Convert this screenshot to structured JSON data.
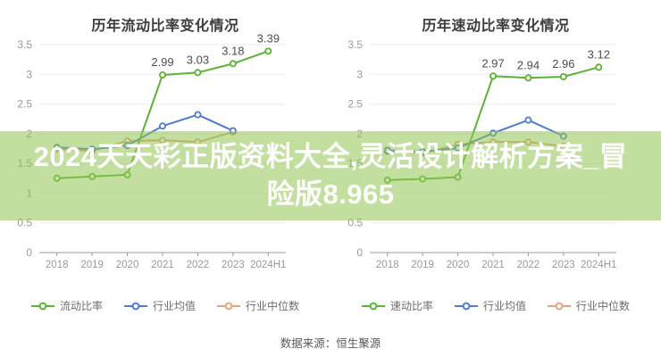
{
  "banner": {
    "line1": "2024天天彩正版资料大全,灵活设计解析方案_冒",
    "line2": "险版8.965",
    "bg_color": "#92c452",
    "text_color": "#ffffff"
  },
  "footer": {
    "source": "数据来源：恒生聚源"
  },
  "colors": {
    "main_series": "#5bb335",
    "industry_avg": "#4d7bd0",
    "industry_median": "#e4a47c",
    "grid": "#ebebeb",
    "axis": "#999999",
    "tick_label": "#999999",
    "data_label": "#4d4d4d",
    "title": "#3d3d3d"
  },
  "chart_data": [
    {
      "type": "line",
      "title": "历年流动比率变化情况",
      "xlabel": "",
      "ylabel": "",
      "categories": [
        "2018",
        "2019",
        "2020",
        "2021",
        "2022",
        "2023",
        "2024H1"
      ],
      "ylim": [
        0,
        3.5
      ],
      "yticks": [
        "0",
        "0.5",
        "1",
        "1.5",
        "2",
        "2.5",
        "3",
        "3.5"
      ],
      "grid": true,
      "legend_position": "bottom",
      "series": [
        {
          "name": "流动比率",
          "color": "#5bb335",
          "values": [
            1.25,
            1.28,
            1.31,
            2.99,
            3.03,
            3.18,
            3.39
          ],
          "labels": [
            null,
            null,
            null,
            "2.99",
            "3.03",
            "3.18",
            "3.39"
          ]
        },
        {
          "name": "行业均值",
          "color": "#4d7bd0",
          "values": [
            1.77,
            1.74,
            1.8,
            2.13,
            2.32,
            2.05
          ]
        },
        {
          "name": "行业中位数",
          "color": "#e4a47c",
          "values": [
            1.74,
            1.71,
            1.88,
            1.89,
            1.86,
            2.03
          ]
        }
      ]
    },
    {
      "type": "line",
      "title": "历年速动比率变化情况",
      "xlabel": "",
      "ylabel": "",
      "categories": [
        "2018",
        "2019",
        "2020",
        "2021",
        "2022",
        "2023",
        "2024H1"
      ],
      "ylim": [
        0,
        3.5
      ],
      "yticks": [
        "0",
        "0.5",
        "1",
        "1.5",
        "2",
        "2.5",
        "3",
        "3.5"
      ],
      "grid": true,
      "legend_position": "bottom",
      "series": [
        {
          "name": "速动比率",
          "color": "#5bb335",
          "values": [
            1.22,
            1.24,
            1.27,
            2.97,
            2.94,
            2.96,
            3.12
          ],
          "labels": [
            null,
            null,
            null,
            "2.97",
            "2.94",
            "2.96",
            "3.12"
          ]
        },
        {
          "name": "行业均值",
          "color": "#4d7bd0",
          "values": [
            1.72,
            1.7,
            1.76,
            2.01,
            2.23,
            1.96
          ]
        },
        {
          "name": "行业中位数",
          "color": "#e4a47c",
          "values": [
            1.7,
            1.67,
            1.82,
            1.86,
            1.86,
            1.79
          ]
        }
      ]
    }
  ]
}
